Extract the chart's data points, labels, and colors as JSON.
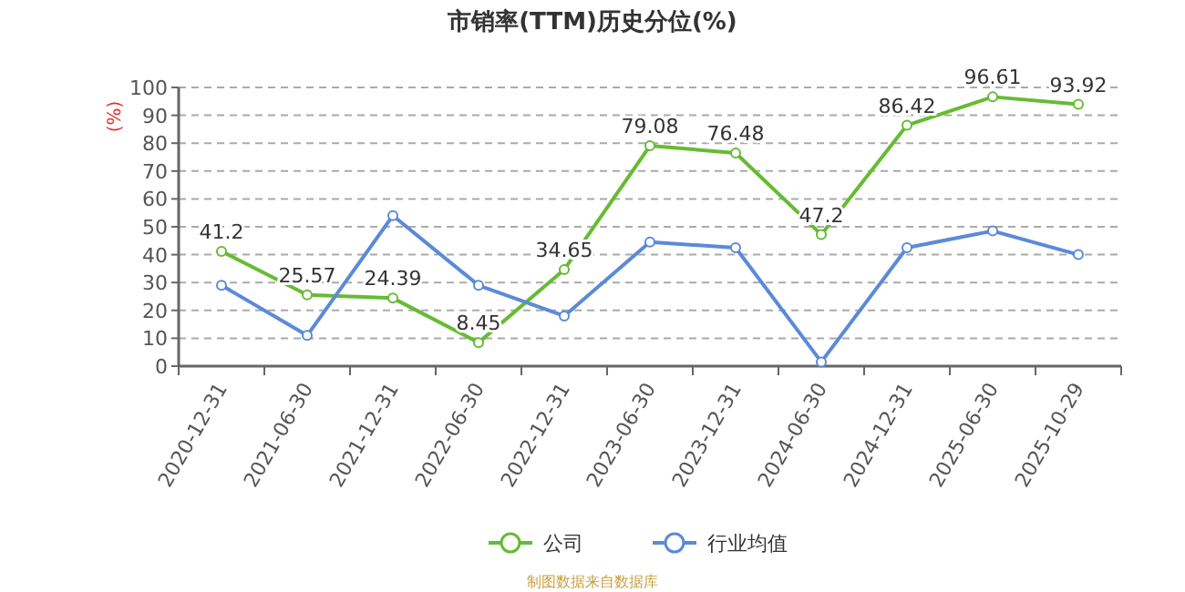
{
  "chart_data": {
    "type": "line",
    "title": "市销率(TTM)历史分位(%)",
    "ylabel": "(%)",
    "categories": [
      "2020-12-31",
      "2021-06-30",
      "2021-12-31",
      "2022-06-30",
      "2022-12-31",
      "2023-06-30",
      "2023-12-31",
      "2024-06-30",
      "2024-12-31",
      "2025-06-30",
      "2025-10-29"
    ],
    "series": [
      {
        "name": "公司",
        "color": "#66bb33",
        "values": [
          41.2,
          25.57,
          24.39,
          8.45,
          34.65,
          79.08,
          76.48,
          47.2,
          86.42,
          96.61,
          93.92
        ],
        "data_labels": true
      },
      {
        "name": "行业均值",
        "color": "#5b8ad8",
        "values": [
          29,
          11,
          54,
          29,
          18,
          44.5,
          42.5,
          1.5,
          42.5,
          48.5,
          40
        ]
      }
    ],
    "ylim": [
      0,
      100
    ],
    "yticks": [
      0,
      10,
      20,
      30,
      40,
      50,
      60,
      70,
      80,
      90,
      100
    ],
    "grid": "y",
    "marker": "circle",
    "legend": "bottom",
    "annotations": [
      "制图数据来自数据库"
    ]
  }
}
